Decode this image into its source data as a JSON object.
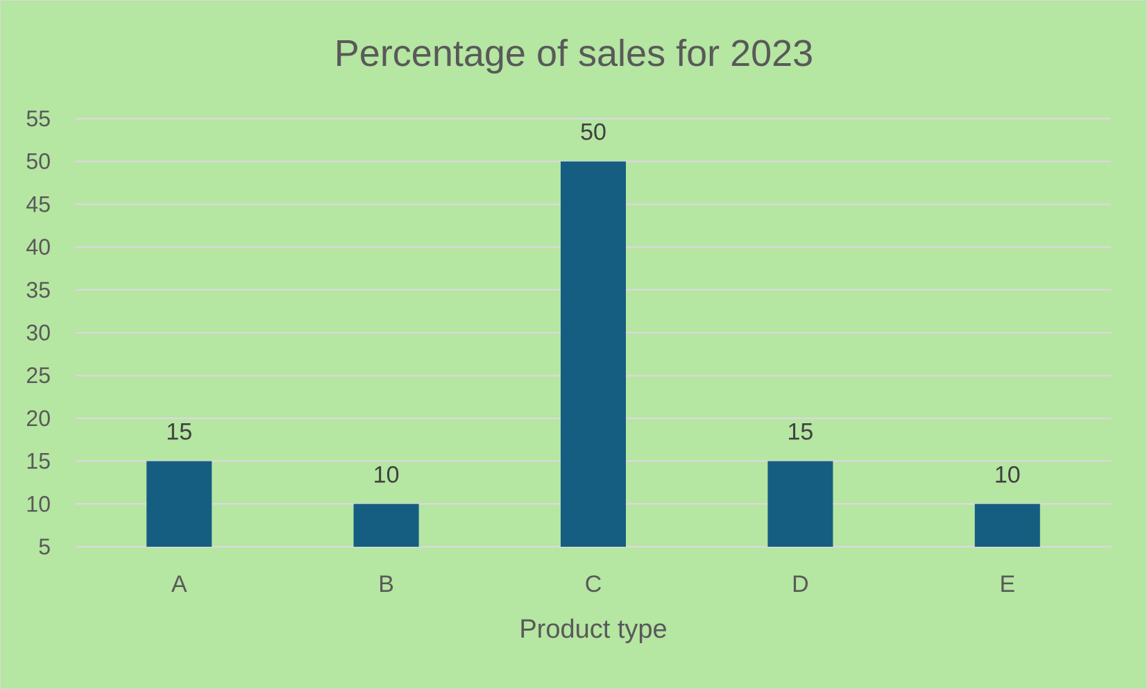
{
  "chart_data": {
    "type": "bar",
    "title": "Percentage of sales for 2023",
    "xlabel": "Product type",
    "ylabel": "",
    "categories": [
      "A",
      "B",
      "C",
      "D",
      "E"
    ],
    "values": [
      15,
      10,
      50,
      15,
      10
    ],
    "data_labels": [
      "15",
      "10",
      "50",
      "15",
      "10"
    ],
    "ylim": [
      5,
      55
    ],
    "yticks": [
      "5",
      "10",
      "15",
      "20",
      "25",
      "30",
      "35",
      "40",
      "45",
      "50",
      "55"
    ],
    "grid": true,
    "legend": "none"
  },
  "colors": {
    "background": "#b5e6a2",
    "bar": "#155e82",
    "gridline": "#d9d9d9",
    "text": "#595959"
  }
}
